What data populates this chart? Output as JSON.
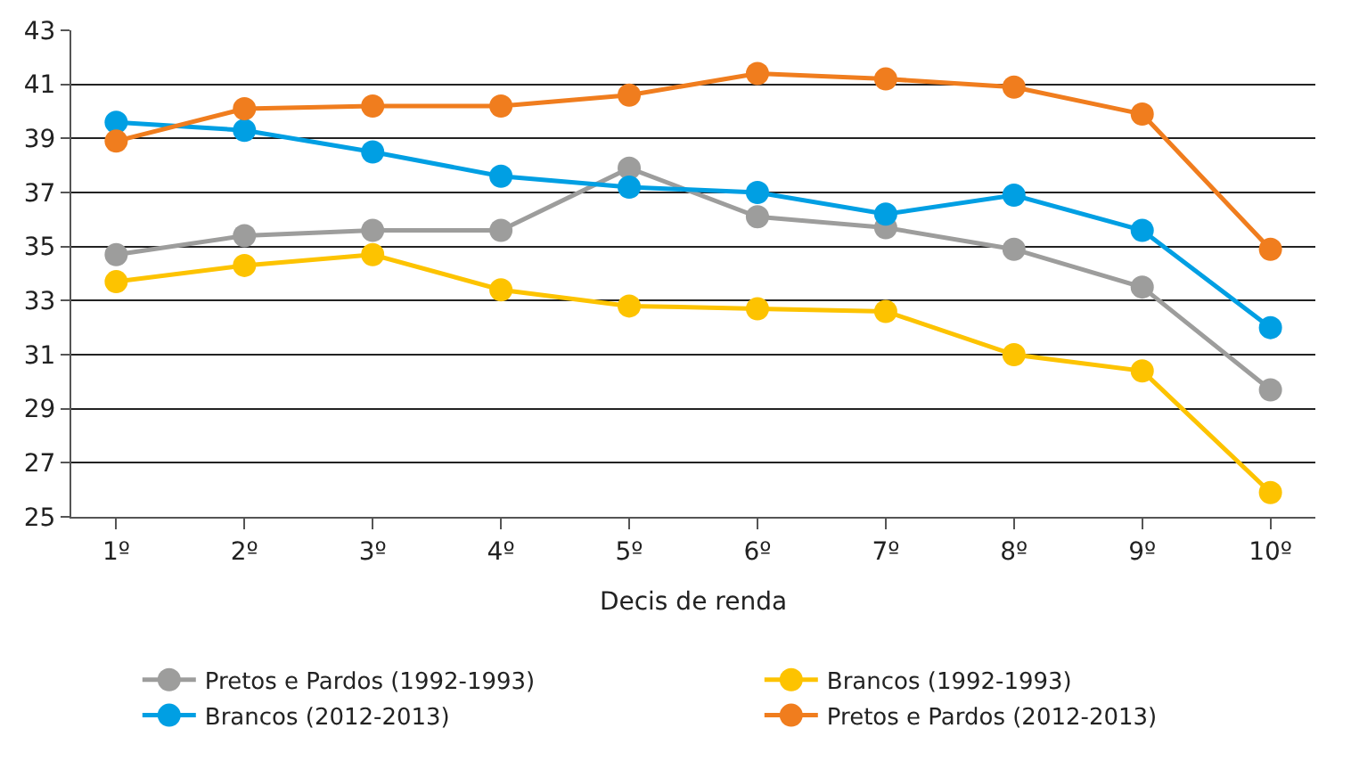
{
  "chart_data": {
    "type": "line",
    "xlabel": "Decis de renda",
    "categories": [
      "1º",
      "2º",
      "3º",
      "4º",
      "5º",
      "6º",
      "7º",
      "8º",
      "9º",
      "10º"
    ],
    "series": [
      {
        "name": "Pretos e Pardos (1992-1993)",
        "color": "#9d9d9c",
        "values": [
          34.7,
          35.4,
          35.6,
          35.6,
          37.9,
          36.1,
          35.7,
          34.9,
          33.5,
          29.7
        ]
      },
      {
        "name": "Brancos (1992-1993)",
        "color": "#fdc300",
        "values": [
          33.7,
          34.3,
          34.7,
          33.4,
          32.8,
          32.7,
          32.6,
          31.0,
          30.4,
          25.9
        ]
      },
      {
        "name": "Brancos (2012-2013)",
        "color": "#009fe3",
        "values": [
          39.6,
          39.3,
          38.5,
          37.6,
          37.2,
          37.0,
          36.2,
          36.9,
          35.6,
          32.0
        ]
      },
      {
        "name": "Pretos e Pardos (2012-2013)",
        "color": "#f07d1e",
        "values": [
          38.9,
          40.1,
          40.2,
          40.2,
          40.6,
          41.4,
          41.2,
          40.9,
          39.9,
          34.9
        ]
      }
    ],
    "ylim": [
      25,
      43
    ],
    "yticks": [
      25,
      27,
      29,
      31,
      33,
      35,
      37,
      39,
      41,
      43
    ],
    "grid": "y",
    "legend": "bottom",
    "marker": "circle",
    "line_style": "solid"
  }
}
